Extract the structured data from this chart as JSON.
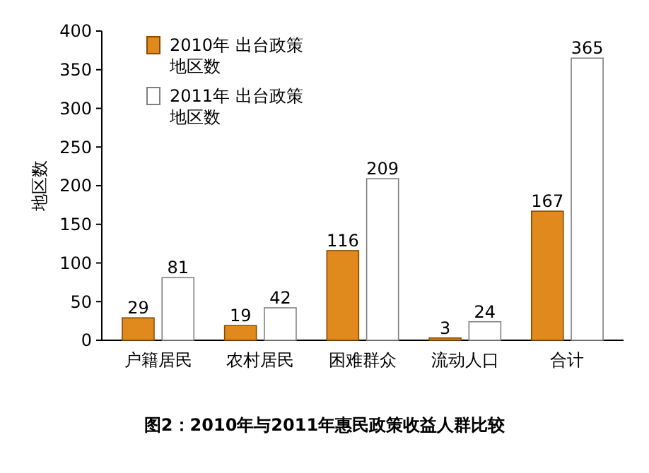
{
  "chart_data": {
    "type": "bar",
    "title": "图2：2010年与2011年惠民政策收益人群比较",
    "ylabel": "地区数",
    "categories": [
      "户籍居民",
      "农村居民",
      "困难群众",
      "流动人口",
      "合计"
    ],
    "series": [
      {
        "name": "2010年 出台政策地区数",
        "color": "#e0891c",
        "values": [
          29,
          19,
          116,
          3,
          167
        ]
      },
      {
        "name": "2011年 出台政策地区数",
        "color": "#ffffff",
        "values": [
          81,
          42,
          209,
          24,
          365
        ]
      }
    ],
    "ylim": [
      0,
      400
    ],
    "yticks": [
      0,
      50,
      100,
      150,
      200,
      250,
      300,
      350,
      400
    ],
    "data_labels": true,
    "legend": "top left",
    "grid": false
  }
}
